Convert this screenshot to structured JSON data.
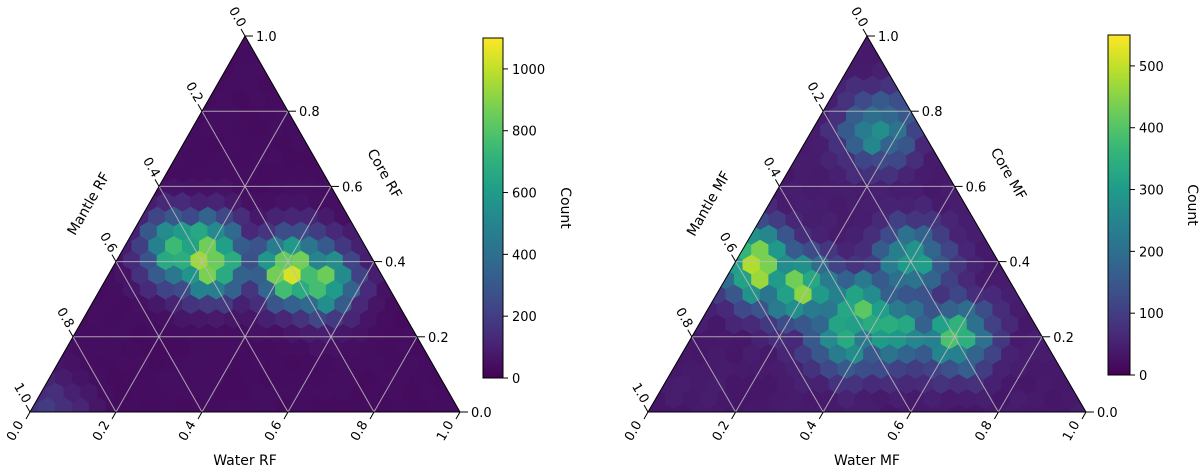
{
  "chart_data": [
    {
      "type": "heatmap",
      "subtype": "ternary-hexbin",
      "axes": {
        "bottom": {
          "label": "Water RF",
          "ticks": [
            "0.0",
            "0.2",
            "0.4",
            "0.6",
            "0.8",
            "1.0"
          ]
        },
        "left": {
          "label": "Mantle RF",
          "ticks": [
            "0.0",
            "0.2",
            "0.4",
            "0.6",
            "0.8",
            "1.0"
          ]
        },
        "right": {
          "label": "Core RF",
          "ticks": [
            "0.0",
            "0.2",
            "0.4",
            "0.6",
            "0.8",
            "1.0"
          ]
        }
      },
      "grid": true,
      "colormap": "viridis",
      "colorbar": {
        "label": "Count",
        "min": 0,
        "max": 1100,
        "ticks": [
          "0",
          "200",
          "400",
          "600",
          "800",
          "1000"
        ]
      },
      "density_peaks": [
        {
          "water": 0.42,
          "mantle": 0.2,
          "core": 0.38,
          "count": 1050
        },
        {
          "water": 0.22,
          "mantle": 0.38,
          "core": 0.4,
          "count": 950
        },
        {
          "water": 0.13,
          "mantle": 0.44,
          "core": 0.43,
          "count": 800
        },
        {
          "water": 0.5,
          "mantle": 0.15,
          "core": 0.35,
          "count": 820
        },
        {
          "water": 0.2,
          "mantle": 0.38,
          "core": 0.42,
          "count": 980
        },
        {
          "water": 0.05,
          "mantle": 0.95,
          "core": 0.0,
          "count": 200
        }
      ]
    },
    {
      "type": "heatmap",
      "subtype": "ternary-hexbin",
      "axes": {
        "bottom": {
          "label": "Water MF",
          "ticks": [
            "0.0",
            "0.2",
            "0.4",
            "0.6",
            "0.8",
            "1.0"
          ]
        },
        "left": {
          "label": "Mantle MF",
          "ticks": [
            "0.0",
            "0.2",
            "0.4",
            "0.6",
            "0.8",
            "1.0"
          ]
        },
        "right": {
          "label": "Core MF",
          "ticks": [
            "0.0",
            "0.2",
            "0.4",
            "0.6",
            "0.8",
            "1.0"
          ]
        }
      },
      "grid": true,
      "colormap": "viridis",
      "colorbar": {
        "label": "Count",
        "min": 0,
        "max": 550,
        "ticks": [
          "0",
          "100",
          "200",
          "300",
          "400",
          "500"
        ]
      },
      "density_peaks": [
        {
          "water": 0.06,
          "mantle": 0.55,
          "core": 0.39,
          "count": 540
        },
        {
          "water": 0.18,
          "mantle": 0.49,
          "core": 0.33,
          "count": 430
        },
        {
          "water": 0.35,
          "mantle": 0.38,
          "core": 0.27,
          "count": 420
        },
        {
          "water": 0.45,
          "mantle": 0.33,
          "core": 0.22,
          "count": 380
        },
        {
          "water": 0.6,
          "mantle": 0.2,
          "core": 0.2,
          "count": 360
        },
        {
          "water": 0.35,
          "mantle": 0.45,
          "core": 0.2,
          "count": 340
        },
        {
          "water": 0.4,
          "mantle": 0.2,
          "core": 0.4,
          "count": 330
        },
        {
          "water": 0.15,
          "mantle": 0.1,
          "core": 0.75,
          "count": 280
        }
      ]
    }
  ]
}
